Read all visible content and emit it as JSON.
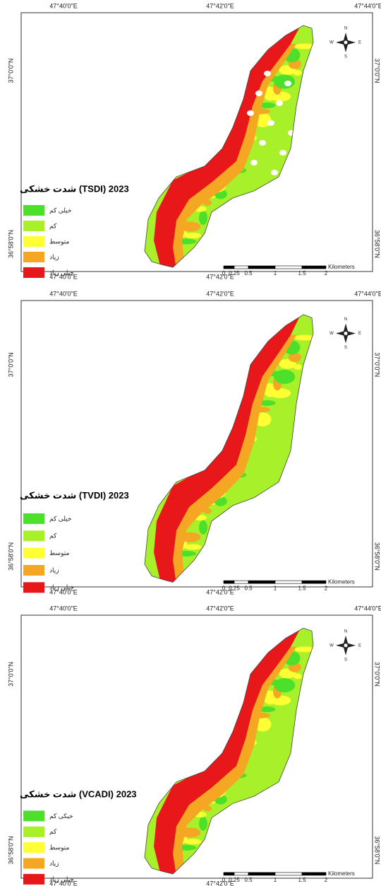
{
  "panels": [
    {
      "top_labels": [
        "47°40'0\"E",
        "47°42'0\"E",
        "47°44'0\"E"
      ],
      "bottom_labels": [
        "47°40'0\"E",
        "47°42'0\"E"
      ],
      "left_labels": [
        "37°0'0\"N",
        "36°58'0\"N"
      ],
      "right_labels": [
        "37°0'0\"N",
        "36°58'0\"N"
      ],
      "title": "شدت خشکی (TSDI) 2023",
      "legend": [
        "خیلی کم",
        "کم",
        "متوسط",
        "زیاد",
        "خیلی زیاد"
      ],
      "scale_labels": [
        "0",
        "0.25",
        "0.5",
        "1",
        "1.5",
        "2"
      ],
      "scale_unit": "Kilometers",
      "compass": [
        "N",
        "S",
        "E",
        "W"
      ]
    },
    {
      "top_labels": [
        "47°40'0\"E",
        "47°42'0\"E",
        "47°44'0\"E"
      ],
      "bottom_labels": [
        "47°40'0\"E",
        "47°42'0\"E"
      ],
      "left_labels": [
        "37°0'0\"N",
        "36°58'0\"N"
      ],
      "right_labels": [
        "37°0'0\"N",
        "36°58'0\"N"
      ],
      "title": "شدت خشکی (TVDI) 2023",
      "legend": [
        "خیلی کم",
        "کم",
        "متوسط",
        "زیاد",
        "خیلی زیاد"
      ],
      "scale_labels": [
        "0",
        "0.25",
        "0.5",
        "1",
        "1.5",
        "2"
      ],
      "scale_unit": "Kilometers",
      "compass": [
        "N",
        "S",
        "E",
        "W"
      ]
    },
    {
      "top_labels": [
        "47°40'0\"E",
        "47°42'0\"E",
        "47°44'0\"E"
      ],
      "bottom_labels": [
        "47°40'0\"E",
        "47°42'0\"E"
      ],
      "left_labels": [
        "37°0'0\"N",
        "36°58'0\"N"
      ],
      "right_labels": [
        "37°0'0\"N",
        "36°58'0\"N"
      ],
      "title": "شدت خشکی (VCADI) 2023",
      "legend": [
        "خیکی کم",
        "کم",
        "متوسط",
        "زیاد",
        "خیلی زیاد"
      ],
      "scale_labels": [
        "0",
        "0.25",
        "0.5",
        "1",
        "1.5",
        "2"
      ],
      "scale_unit": "Kilometers",
      "compass": [
        "N",
        "S",
        "E",
        "W"
      ]
    }
  ]
}
